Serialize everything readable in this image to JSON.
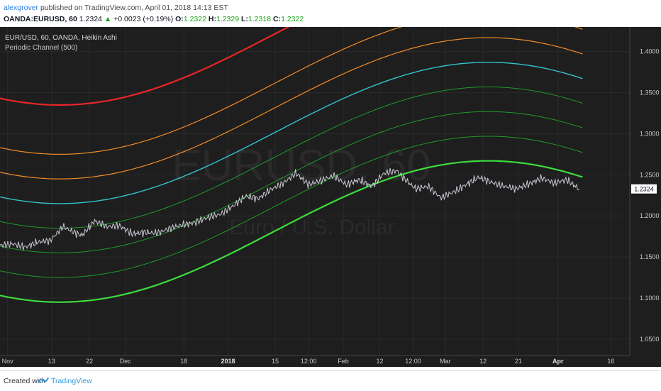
{
  "header": {
    "user": "alexgrover",
    "published": " published on TradingView.com, April 01, 2018 14:13 EST",
    "symbol": "OANDA:EURUSD, 60",
    "last": "1.2324",
    "change": "+0.0023 (+0.19%)",
    "o_label": "O:",
    "o": "1.2322",
    "h_label": "H:",
    "h": "1.2329",
    "l_label": "L:",
    "l": "1.2318",
    "c_label": "C:",
    "c": "1.2322"
  },
  "footer": {
    "created": "Created with",
    "brand": "TradingView",
    "logo": "tradingview-logo-icon"
  },
  "colors": {
    "bg": "#1e1e1e",
    "grid": "#2b2b2b",
    "text": "#c8c8c8",
    "price": "#c9c9d4",
    "last_badge": "#ffffff"
  },
  "chart_data": {
    "type": "line",
    "title": "EUR/USD, 60, OANDA, Heikin Ashi",
    "subtitle": "Periodic Channel (500)",
    "watermark_symbol": "EURUSD, 60",
    "watermark_name": "Euro / U.S. Dollar",
    "x_labels": [
      "Nov",
      "13",
      "22",
      "Dec",
      "18",
      "2018",
      "15",
      "12:00",
      "Feb",
      "12",
      "12:00",
      "Mar",
      "12",
      "21",
      "Apr",
      "16"
    ],
    "y_labels": [
      "1.4000",
      "1.3500",
      "1.3000",
      "1.2500",
      "1.2000",
      "1.1500",
      "1.1000",
      "1.0500"
    ],
    "ylim": [
      1.03,
      1.43
    ],
    "last_value": "1.2324",
    "channel": {
      "mid_start": 1.185,
      "mid_amp": 0.086,
      "t_min": 0.095,
      "t_max": 0.775,
      "x_end": 0.925
    },
    "series": [
      {
        "offset": 0.15,
        "color": "#e8262b",
        "width": 2.2
      },
      {
        "offset": 0.09,
        "color": "#f28c28",
        "width": 1.2
      },
      {
        "offset": 0.06,
        "color": "#f28c28",
        "width": 1.2
      },
      {
        "offset": 0.03,
        "color": "#35c3cc",
        "width": 1.4
      },
      {
        "offset": 0.0,
        "color": "#1e9a2a",
        "width": 1.0
      },
      {
        "offset": -0.03,
        "color": "#1e9a2a",
        "width": 1.0
      },
      {
        "offset": -0.06,
        "color": "#1e9a2a",
        "width": 1.0
      },
      {
        "offset": -0.09,
        "color": "#3ddc3d",
        "width": 2.2
      }
    ],
    "price": {
      "x": [
        0.0,
        0.02,
        0.04,
        0.06,
        0.08,
        0.1,
        0.115,
        0.13,
        0.15,
        0.17,
        0.19,
        0.21,
        0.23,
        0.25,
        0.27,
        0.29,
        0.31,
        0.33,
        0.35,
        0.37,
        0.39,
        0.41,
        0.43,
        0.45,
        0.47,
        0.49,
        0.51,
        0.53,
        0.55,
        0.57,
        0.59,
        0.61,
        0.63,
        0.645,
        0.66,
        0.68,
        0.7,
        0.72,
        0.74,
        0.76,
        0.78,
        0.8,
        0.82,
        0.84,
        0.86,
        0.88,
        0.9,
        0.92
      ],
      "y": [
        1.164,
        1.166,
        1.162,
        1.168,
        1.17,
        1.187,
        1.181,
        1.176,
        1.194,
        1.187,
        1.188,
        1.178,
        1.18,
        1.179,
        1.185,
        1.189,
        1.192,
        1.198,
        1.202,
        1.212,
        1.224,
        1.221,
        1.232,
        1.24,
        1.252,
        1.238,
        1.243,
        1.249,
        1.238,
        1.244,
        1.236,
        1.252,
        1.255,
        1.243,
        1.233,
        1.236,
        1.222,
        1.229,
        1.238,
        1.247,
        1.241,
        1.236,
        1.233,
        1.239,
        1.246,
        1.24,
        1.244,
        1.2324
      ]
    }
  }
}
